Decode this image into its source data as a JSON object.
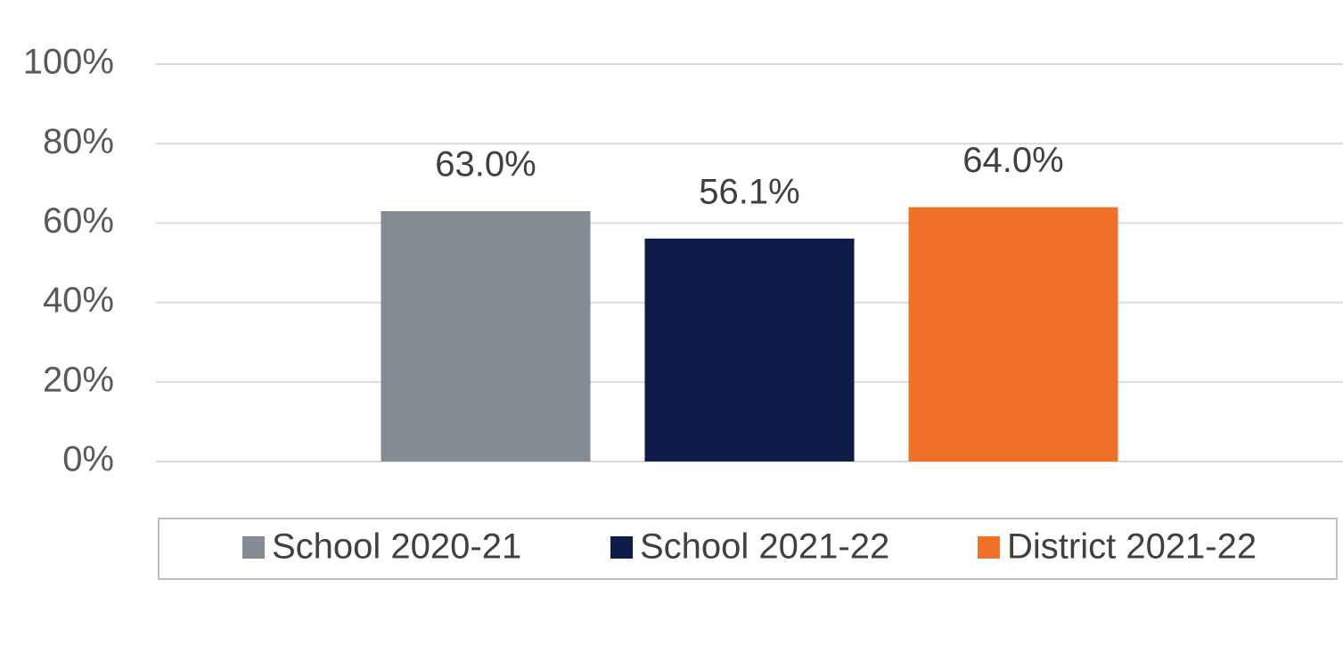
{
  "chart_data": {
    "type": "bar",
    "categories": [
      null
    ],
    "series": [
      {
        "name": "School 2020-21",
        "color": "#858b94",
        "values": [
          63.0
        ],
        "value_labels": [
          "63.0%"
        ]
      },
      {
        "name": "School 2021-22",
        "color": "#0f1c48",
        "values": [
          56.1
        ],
        "value_labels": [
          "56.1%"
        ]
      },
      {
        "name": "District 2021-22",
        "color": "#f07027",
        "values": [
          64.0
        ],
        "value_labels": [
          "64.0%"
        ]
      }
    ],
    "ylim": [
      0,
      100
    ],
    "yticks": [
      {
        "value": 0,
        "label": "0%"
      },
      {
        "value": 20,
        "label": "20%"
      },
      {
        "value": 40,
        "label": "40%"
      },
      {
        "value": 60,
        "label": "60%"
      },
      {
        "value": 80,
        "label": "80%"
      },
      {
        "value": 100,
        "label": "100%"
      }
    ],
    "grid": true,
    "legend": "bottom"
  }
}
